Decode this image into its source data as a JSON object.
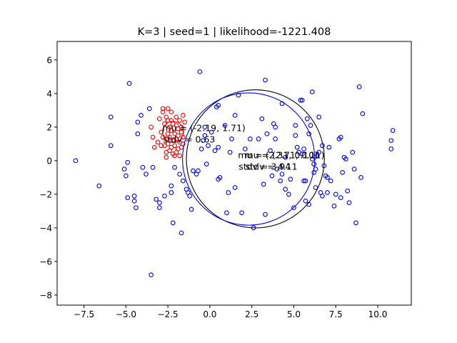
{
  "chart_data": {
    "type": "scatter",
    "title": "K=3 | seed=1 | likelihood=-1221.408",
    "xlabel": "",
    "ylabel": "",
    "xlim": [
      -9.1,
      12.0
    ],
    "ylim": [
      -8.6,
      7.1
    ],
    "xticks": [
      -7.5,
      -5.0,
      -2.5,
      0.0,
      2.5,
      5.0,
      7.5,
      10.0
    ],
    "xtick_labels": [
      "−7.5",
      "−5.0",
      "−2.5",
      "0.0",
      "2.5",
      "5.0",
      "7.5",
      "10.0"
    ],
    "yticks": [
      -8,
      -6,
      -4,
      -2,
      0,
      2,
      4,
      6
    ],
    "ytick_labels": [
      "−8",
      "−6",
      "−4",
      "−2",
      "0",
      "2",
      "4",
      "6"
    ],
    "grid": false,
    "colors": {
      "blue": "#0000ff",
      "red": "#ff0000",
      "black": "#000000"
    },
    "series": [
      {
        "color": "#ff0000",
        "points": [
          [
            -2.8,
            3.1
          ],
          [
            -2.5,
            3.1
          ],
          [
            -3.0,
            2.5
          ],
          [
            -2.6,
            2.6
          ],
          [
            -2.3,
            2.4
          ],
          [
            -2.0,
            2.6
          ],
          [
            -1.8,
            2.4
          ],
          [
            -1.6,
            2.7
          ],
          [
            -2.7,
            2.2
          ],
          [
            -2.4,
            2.0
          ],
          [
            -2.2,
            2.2
          ],
          [
            -2.0,
            2.1
          ],
          [
            -1.9,
            1.9
          ],
          [
            -1.7,
            2.0
          ],
          [
            -2.9,
            1.7
          ],
          [
            -2.5,
            1.6
          ],
          [
            -2.3,
            1.8
          ],
          [
            -2.1,
            1.6
          ],
          [
            -1.9,
            1.5
          ],
          [
            -1.7,
            1.7
          ],
          [
            -2.8,
            1.4
          ],
          [
            -2.6,
            1.3
          ],
          [
            -2.4,
            1.4
          ],
          [
            -2.2,
            1.2
          ],
          [
            -2.0,
            1.3
          ],
          [
            -1.8,
            1.1
          ],
          [
            -1.6,
            1.4
          ],
          [
            -3.1,
            1.1
          ],
          [
            -2.9,
            0.9
          ],
          [
            -2.7,
            0.9
          ],
          [
            -2.5,
            1.0
          ],
          [
            -2.3,
            0.8
          ],
          [
            -2.1,
            0.9
          ],
          [
            -1.9,
            0.7
          ],
          [
            -1.7,
            0.8
          ],
          [
            -2.6,
            0.5
          ],
          [
            -2.4,
            0.6
          ],
          [
            -2.2,
            0.4
          ],
          [
            -2.0,
            0.5
          ],
          [
            -1.8,
            0.3
          ],
          [
            -2.6,
            0.2
          ],
          [
            -2.1,
            0.3
          ],
          [
            -3.4,
            1.4
          ],
          [
            -3.5,
            2.0
          ],
          [
            -1.5,
            2.3
          ],
          [
            -2.8,
            2.9
          ],
          [
            -2.3,
            2.9
          ],
          [
            -1.6,
            1.0
          ],
          [
            -3.3,
            0.8
          ],
          [
            -2.5,
            2.4
          ]
        ]
      },
      {
        "color": "#0000ff",
        "points": [
          [
            -8.0,
            0.0
          ],
          [
            -6.6,
            -1.5
          ],
          [
            -5.9,
            2.6
          ],
          [
            -5.9,
            0.9
          ],
          [
            -4.8,
            4.6
          ],
          [
            -5.1,
            -0.5
          ],
          [
            -5.0,
            -0.9
          ],
          [
            -4.9,
            -0.1
          ],
          [
            -4.9,
            -2.2
          ],
          [
            -4.5,
            -2.4
          ],
          [
            -4.5,
            -2.1
          ],
          [
            -4.4,
            -2.8
          ],
          [
            -4.3,
            2.3
          ],
          [
            -4.1,
            2.7
          ],
          [
            -4.3,
            1.6
          ],
          [
            -4.0,
            -0.4
          ],
          [
            -3.8,
            -0.8
          ],
          [
            -3.6,
            3.1
          ],
          [
            -3.5,
            -6.8
          ],
          [
            -3.4,
            -0.4
          ],
          [
            -3.2,
            -2.3
          ],
          [
            -3.0,
            -2.5
          ],
          [
            -3.0,
            -2.8
          ],
          [
            -2.7,
            -2.1
          ],
          [
            -2.3,
            -1.5
          ],
          [
            -2.3,
            -1.9
          ],
          [
            -2.2,
            -3.7
          ],
          [
            -2.1,
            -0.4
          ],
          [
            -1.8,
            -0.8
          ],
          [
            -1.7,
            -4.3
          ],
          [
            -1.6,
            -1.2
          ],
          [
            -1.4,
            -1.7
          ],
          [
            -1.3,
            -1.9
          ],
          [
            -1.2,
            -2.1
          ],
          [
            -1.1,
            -2.9
          ],
          [
            -1.0,
            -0.6
          ],
          [
            -0.8,
            -0.8
          ],
          [
            -0.7,
            -0.6
          ],
          [
            -0.6,
            5.3
          ],
          [
            -0.5,
            0.7
          ],
          [
            -0.4,
            1.2
          ],
          [
            -0.3,
            1.5
          ],
          [
            -0.3,
            2.0
          ],
          [
            -0.2,
            -0.2
          ],
          [
            -0.1,
            0.9
          ],
          [
            0.1,
            1.7
          ],
          [
            0.3,
            0.6
          ],
          [
            0.4,
            3.2
          ],
          [
            0.5,
            3.3
          ],
          [
            0.5,
            -1.1
          ],
          [
            0.5,
            0.8
          ],
          [
            0.6,
            -1.0
          ],
          [
            0.9,
            2.1
          ],
          [
            1.0,
            -3.1
          ],
          [
            1.1,
            -1.9
          ],
          [
            1.2,
            0.5
          ],
          [
            1.3,
            1.3
          ],
          [
            1.5,
            2.7
          ],
          [
            1.5,
            -1.6
          ],
          [
            1.7,
            3.9
          ],
          [
            1.9,
            -3.1
          ],
          [
            2.1,
            0.7
          ],
          [
            2.4,
            1.3
          ],
          [
            2.6,
            -4.0
          ],
          [
            3.3,
            4.8
          ],
          [
            3.4,
            1.6
          ],
          [
            3.1,
            2.5
          ],
          [
            3.2,
            -1.4
          ],
          [
            3.3,
            -3.2
          ],
          [
            3.6,
            0.6
          ],
          [
            3.7,
            -0.9
          ],
          [
            3.8,
            2.2
          ],
          [
            3.9,
            2.0
          ],
          [
            4.0,
            -0.5
          ],
          [
            4.2,
            -1.2
          ],
          [
            4.3,
            -0.8
          ],
          [
            4.5,
            0.2
          ],
          [
            4.5,
            -1.7
          ],
          [
            4.7,
            -2.0
          ],
          [
            4.8,
            -1.1
          ],
          [
            5.0,
            -2.8
          ],
          [
            5.1,
            2.1
          ],
          [
            5.1,
            1.5
          ],
          [
            5.2,
            0.8
          ],
          [
            5.3,
            0.5
          ],
          [
            5.4,
            3.6
          ],
          [
            5.5,
            3.6
          ],
          [
            5.5,
            0.4
          ],
          [
            5.6,
            0.7
          ],
          [
            5.6,
            -1.2
          ],
          [
            5.7,
            -1.2
          ],
          [
            5.7,
            -2.4
          ],
          [
            5.8,
            2.5
          ],
          [
            5.9,
            1.6
          ],
          [
            5.9,
            -2.6
          ],
          [
            6.0,
            2.1
          ],
          [
            6.1,
            4.1
          ],
          [
            6.1,
            0.1
          ],
          [
            6.2,
            -0.2
          ],
          [
            6.2,
            -0.7
          ],
          [
            6.3,
            -0.5
          ],
          [
            6.3,
            -1.6
          ],
          [
            6.4,
            0.3
          ],
          [
            6.5,
            0.5
          ],
          [
            6.5,
            2.6
          ],
          [
            6.6,
            -1.9
          ],
          [
            6.7,
            0.9
          ],
          [
            6.7,
            -2.1
          ],
          [
            6.8,
            -0.3
          ],
          [
            6.9,
            -0.9
          ],
          [
            7.0,
            -1.0
          ],
          [
            7.0,
            -1.9
          ],
          [
            7.1,
            0.8
          ],
          [
            7.2,
            -1.2
          ],
          [
            7.4,
            -2.7
          ],
          [
            7.5,
            -2.0
          ],
          [
            7.7,
            1.3
          ],
          [
            7.8,
            -2.2
          ],
          [
            7.8,
            1.4
          ],
          [
            7.9,
            -0.7
          ],
          [
            8.0,
            0.2
          ],
          [
            8.1,
            0.1
          ],
          [
            8.2,
            -1.8
          ],
          [
            8.3,
            -2.5
          ],
          [
            8.5,
            0.5
          ],
          [
            8.6,
            -0.5
          ],
          [
            8.7,
            -3.7
          ],
          [
            8.9,
            4.4
          ],
          [
            9.0,
            -1.0
          ],
          [
            9.1,
            2.8
          ],
          [
            10.8,
            1.2
          ],
          [
            10.8,
            0.7
          ],
          [
            10.9,
            1.8
          ],
          [
            3.9,
            1.3
          ],
          [
            4.3,
            3.4
          ],
          [
            2.9,
            1.3
          ]
        ]
      }
    ],
    "components": [
      {
        "mu": [
          -2.19,
          1.71
        ],
        "sigma": 0.63,
        "color": "#ff0000",
        "label_mu": "mu = (-2.19, 1.71)",
        "label_std": "stdv = 0.63"
      },
      {
        "mu": [
          2.71,
          0.11
        ],
        "sigma": 4.11,
        "color": "#000000",
        "label_mu": "mu = (2.71, 0.11)",
        "label_std": "stdv = 4.11"
      },
      {
        "mu": [
          2.31,
          0.1
        ],
        "sigma": 3.94,
        "color": "#0000ff",
        "label_mu": "mu = (2.31, 0.10)",
        "label_std": "stdv = 3.94"
      }
    ]
  }
}
